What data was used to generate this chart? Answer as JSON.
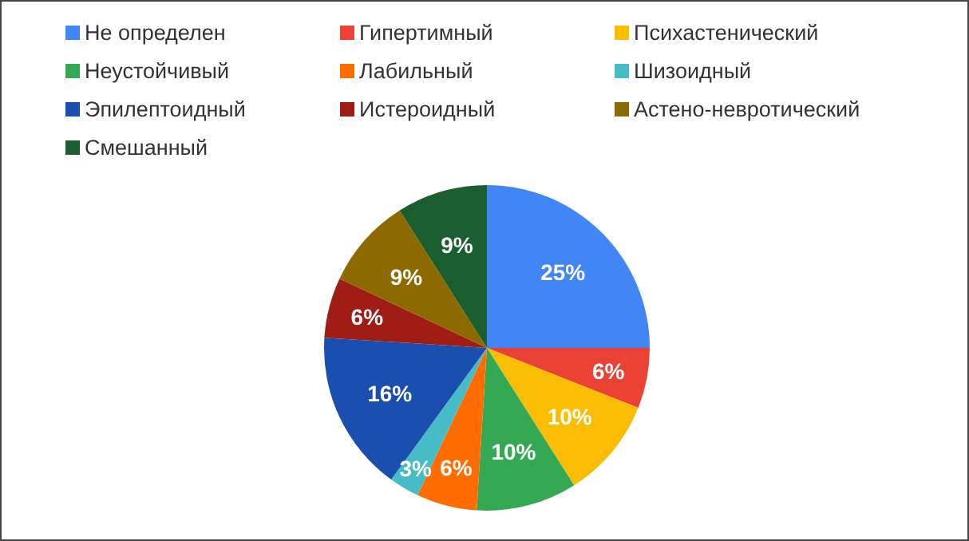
{
  "chart_data": {
    "type": "pie",
    "categories": [
      "Не определен",
      "Гипертимный",
      "Психастенический",
      "Неустойчивый",
      "Лабильный",
      "Шизоидный",
      "Эпилептоидный",
      "Истероидный",
      "Астено-невротический",
      "Смешанный"
    ],
    "values": [
      25,
      6,
      10,
      10,
      6,
      3,
      16,
      6,
      9,
      9
    ],
    "colors": [
      "#4285f4",
      "#ea4335",
      "#fbbc04",
      "#34a853",
      "#ff6d01",
      "#46bdc6",
      "#1a4fb0",
      "#a01d16",
      "#8c6a00",
      "#1b5e2f"
    ],
    "value_labels": [
      "25%",
      "6%",
      "10%",
      "10%",
      "6%",
      "3%",
      "16%",
      "6%",
      "9%",
      "9%"
    ],
    "legend": "top"
  }
}
